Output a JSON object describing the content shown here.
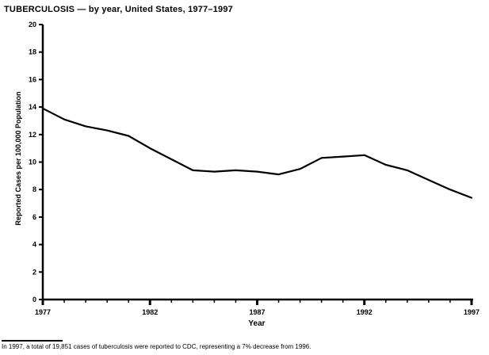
{
  "title": "TUBERCULOSIS — by year, United States, 1977–1997",
  "footnote": "In 1997, a total of 19,851 cases of tuberculosis were reported to CDC, representing a 7% decrease from 1996.",
  "colors": {
    "line": "#000000",
    "axis": "#000000",
    "background": "#ffffff"
  },
  "chart_data": {
    "type": "line",
    "title": "TUBERCULOSIS — by year, United States, 1977–1997",
    "xlabel": "Year",
    "ylabel": "Reported Cases per 100,000 Population",
    "x": [
      1977,
      1978,
      1979,
      1980,
      1981,
      1982,
      1983,
      1984,
      1985,
      1986,
      1987,
      1988,
      1989,
      1990,
      1991,
      1992,
      1993,
      1994,
      1995,
      1996,
      1997
    ],
    "values": [
      13.9,
      13.1,
      12.6,
      12.3,
      11.9,
      11.0,
      10.2,
      9.4,
      9.3,
      9.4,
      9.3,
      9.1,
      9.5,
      10.3,
      10.4,
      10.5,
      9.8,
      9.4,
      8.7,
      8.0,
      7.4
    ],
    "ylim": [
      0,
      20
    ],
    "yticks": [
      0,
      2,
      4,
      6,
      8,
      10,
      12,
      14,
      16,
      18,
      20
    ],
    "xticks_labeled": [
      1977,
      1982,
      1987,
      1992,
      1997
    ],
    "grid": false,
    "legend": null,
    "line_color": "#000000"
  }
}
